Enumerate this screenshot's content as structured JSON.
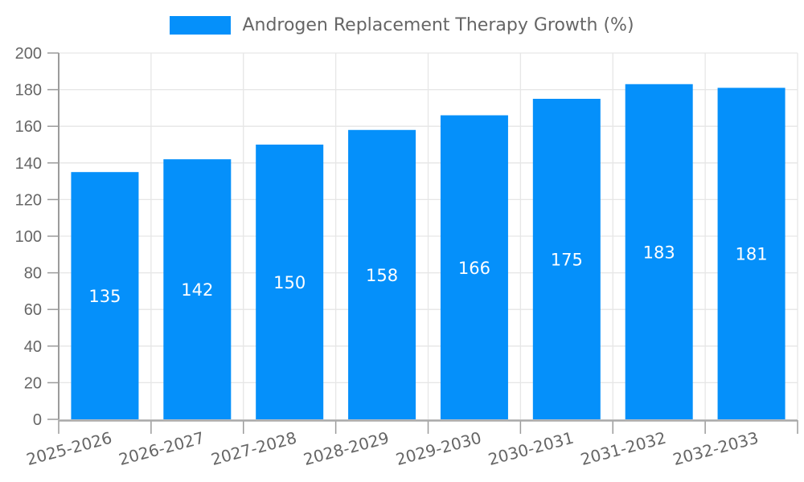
{
  "legend": {
    "label": "Androgen Replacement Therapy Growth (%)"
  },
  "chart_data": {
    "type": "bar",
    "title": "",
    "categories": [
      "2025-2026",
      "2026-2027",
      "2027-2028",
      "2028-2029",
      "2029-2030",
      "2030-2031",
      "2031-2032",
      "2032-2033"
    ],
    "series": [
      {
        "name": "Androgen Replacement Therapy Growth (%)",
        "values": [
          135,
          142,
          150,
          158,
          166,
          175,
          183,
          181
        ]
      }
    ],
    "xlabel": "",
    "ylabel": "",
    "ylim": [
      0,
      200
    ],
    "yticks": [
      0,
      20,
      40,
      60,
      80,
      100,
      120,
      140,
      160,
      180,
      200
    ],
    "grid": true,
    "legend_position": "top-center",
    "x_label_rotation_deg": -15,
    "value_label_style": "inside-center"
  },
  "colors": {
    "bar": "#0590fa",
    "grid_line": "#e6e6e6",
    "axis_line": "#9b9b9b",
    "x_axis_line": "#a9a9a9",
    "tick_label": "#666666",
    "bar_value_label": "#ffffff",
    "background": "#ffffff"
  }
}
